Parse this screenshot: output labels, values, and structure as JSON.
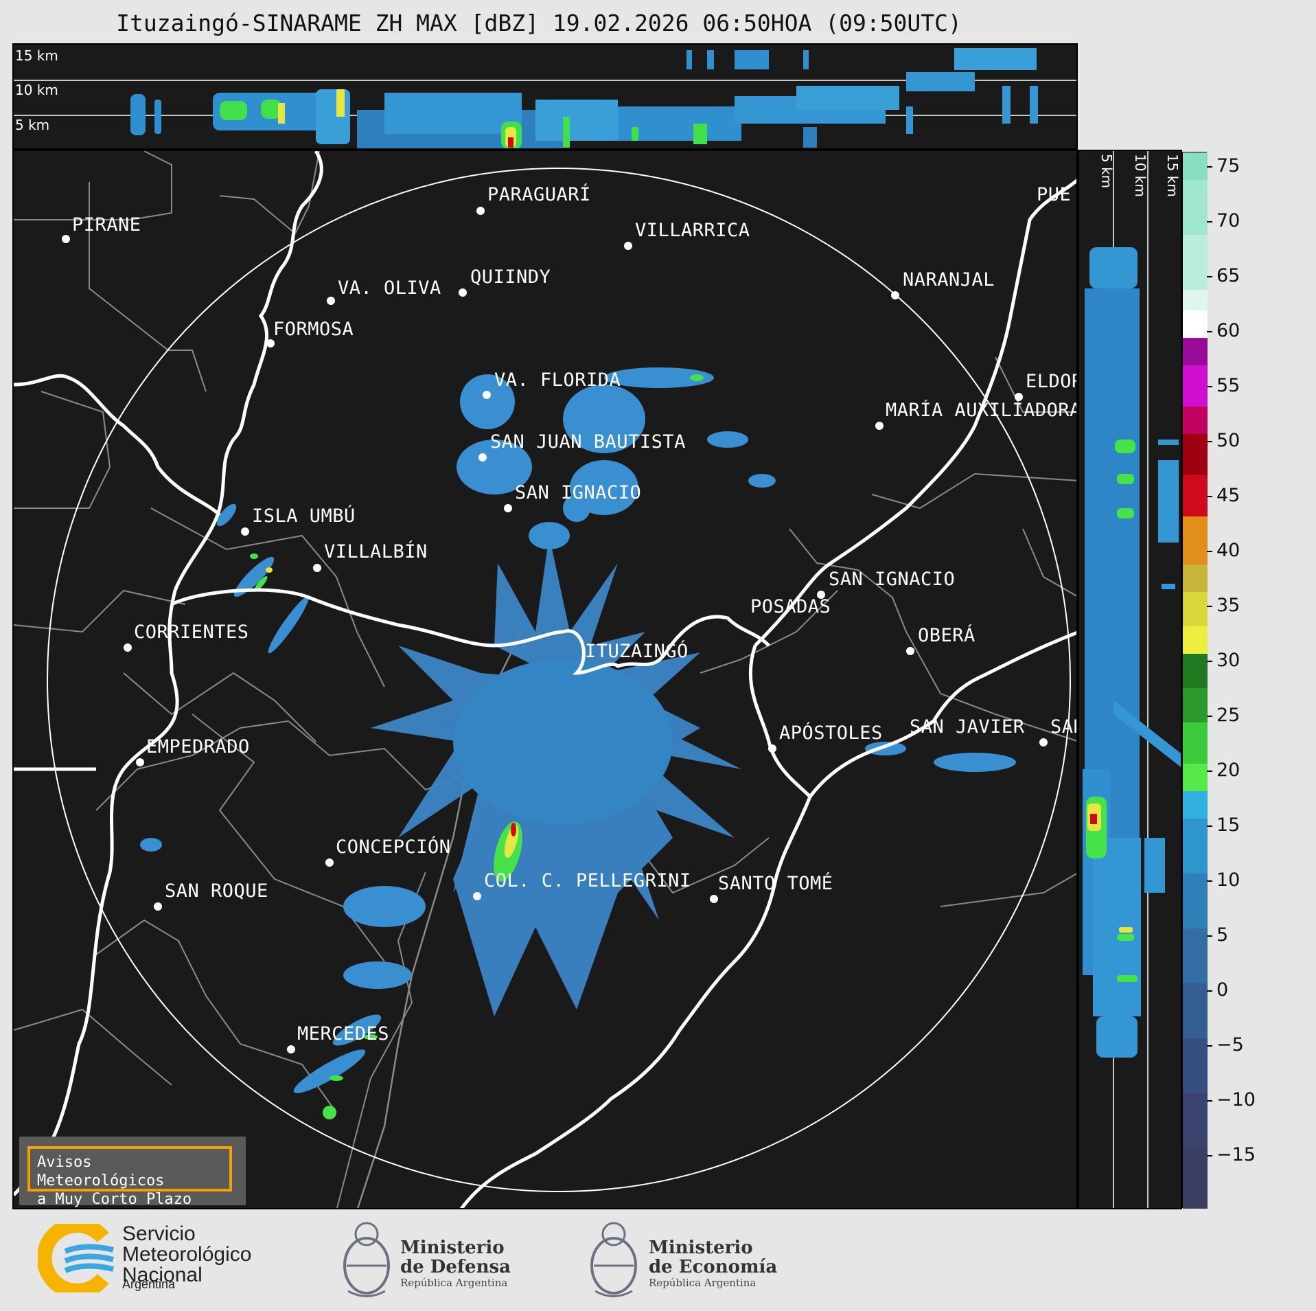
{
  "title": "Ituzaingó-SINARAME ZH MAX [dBZ] 19.02.2026 06:50HOA (09:50UTC)",
  "top_panel": {
    "height_labels": [
      "15 km",
      "10 km",
      "5 km"
    ]
  },
  "right_panel": {
    "height_labels": [
      "5 km",
      "10 km",
      "15 km"
    ]
  },
  "colorbar": {
    "unit": "dBZ",
    "ticks": [
      "75",
      "70",
      "65",
      "60",
      "55",
      "50",
      "45",
      "40",
      "35",
      "30",
      "25",
      "20",
      "15",
      "10",
      "5",
      "0",
      "−5",
      "−10",
      "−15"
    ]
  },
  "cities": [
    {
      "name": "PARAGUARÍ"
    },
    {
      "name": "PIRANE"
    },
    {
      "name": "VILLARRICA"
    },
    {
      "name": "QUIINDY"
    },
    {
      "name": "VA. OLIVA"
    },
    {
      "name": "NARANJAL"
    },
    {
      "name": "FORMOSA"
    },
    {
      "name": "VA. FLORIDA"
    },
    {
      "name": "ELDORADO"
    },
    {
      "name": "MARÍA AUXILIADORA"
    },
    {
      "name": "SAN JUAN BAUTISTA"
    },
    {
      "name": "SAN IGNACIO"
    },
    {
      "name": "ISLA UMBÚ"
    },
    {
      "name": "VILLALBÍN"
    },
    {
      "name": "SAN IGNACIO"
    },
    {
      "name": "POSADAS"
    },
    {
      "name": "CORRIENTES"
    },
    {
      "name": "ITUZAINGÓ"
    },
    {
      "name": "OBERÁ"
    },
    {
      "name": "APÓSTOLES"
    },
    {
      "name": "SAN JAVIER"
    },
    {
      "name": "SAN"
    },
    {
      "name": "EMPEDRADO"
    },
    {
      "name": "CONCEPCIÓN"
    },
    {
      "name": "COL. C. PELLEGRINI"
    },
    {
      "name": "SANTO TOMÉ"
    },
    {
      "name": "SAN ROQUE"
    },
    {
      "name": "MERCEDES"
    },
    {
      "name": "PUE"
    }
  ],
  "warning_box": {
    "line1": "Avisos Meteorológicos",
    "line2": "a Muy Corto Plazo"
  },
  "logos": {
    "smn": {
      "line1": "Servicio",
      "line2": "Meteorológico",
      "line3": "Nacional",
      "country": "Argentina"
    },
    "defensa": {
      "line1": "Ministerio",
      "line2": "de Defensa",
      "sub": "República Argentina"
    },
    "economia": {
      "line1": "Ministerio",
      "line2": "de Economía",
      "sub": "República Argentina"
    }
  },
  "colors": {
    "background": "#1a1a1a",
    "accent": "#f5a000",
    "smn_blue": "#3aa8de",
    "smn_yellow": "#f5b400"
  }
}
